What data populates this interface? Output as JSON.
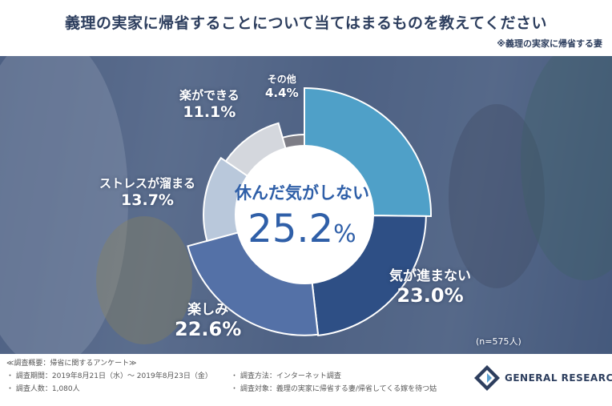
{
  "title": "義理の実家に帰省することについて当てはまるものを教えてください",
  "subtitle": "※義理の実家に帰省する妻",
  "sample_size": "(n=575人)",
  "footer": {
    "heading": "≪調査概要：帰省に関するアンケート≫",
    "period": "・ 調査期間：2019年8月21日（水）～ 2019年8月23日（金）",
    "respondents": "・ 調査人数：1,080人",
    "method": "・ 調査方法：インターネット調査",
    "target": "・ 調査対象：義理の実家に帰省する妻/帰省してくる嫁を待つ姑"
  },
  "logo": {
    "text": "GENERAL RESEARCH",
    "color": "#2d3e5e"
  },
  "colors": {
    "title": "#2d3e5e",
    "center_text": "#2f5fa8"
  },
  "chart_data": {
    "type": "pie",
    "style": "rose (slice radius varies by value), sorted descending clockwise from 12 o'clock",
    "unit": "%",
    "slices": [
      {
        "label": "休んだ気がしない",
        "value": 25.2,
        "display": "25.2%",
        "color": "#4fa0c8"
      },
      {
        "label": "気が進まない",
        "value": 23.0,
        "display": "23.0%",
        "color": "#2e4f85"
      },
      {
        "label": "楽しみ",
        "value": 22.6,
        "display": "22.6%",
        "color": "#5471a7"
      },
      {
        "label": "ストレスが溜まる",
        "value": 13.7,
        "display": "13.7%",
        "color": "#b9c8db"
      },
      {
        "label": "楽ができる",
        "value": 11.1,
        "display": "11.1%",
        "color": "#d4d7dd"
      },
      {
        "label": "その他",
        "value": 4.4,
        "display": "4.4%",
        "color": "#7d7d86"
      }
    ],
    "highlight": {
      "label": "休んだ気がしない",
      "value_main": "25.2",
      "value_unit": "%"
    },
    "legend": "none (direct labels)"
  }
}
